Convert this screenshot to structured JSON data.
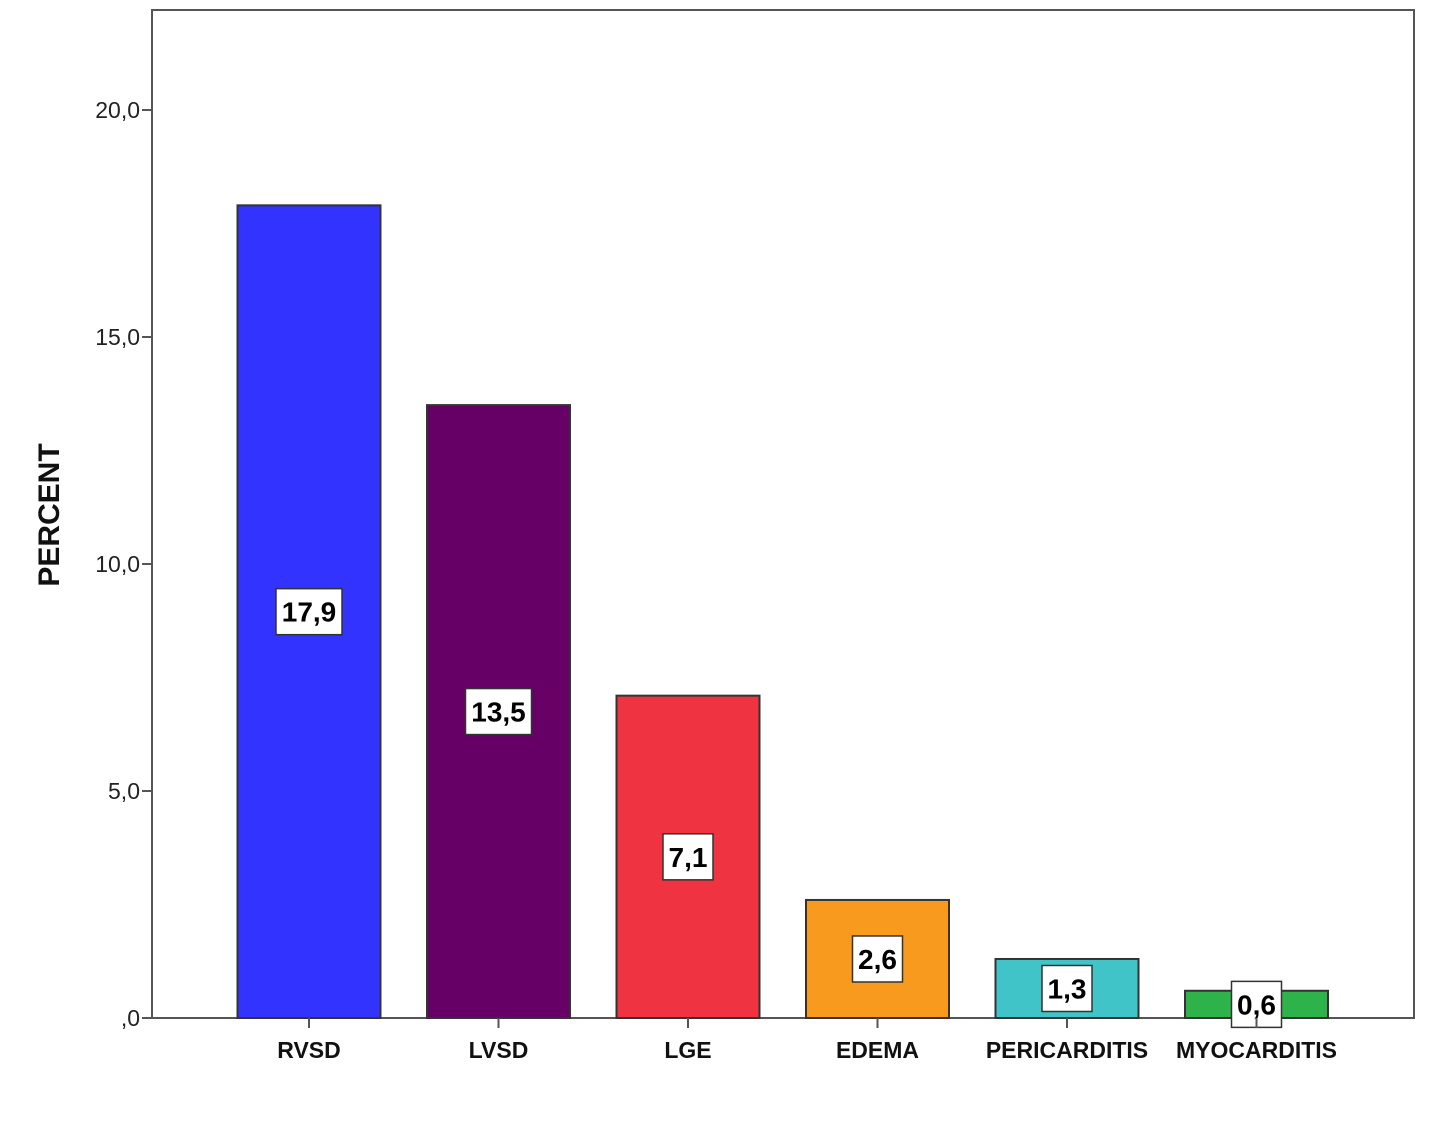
{
  "chart_data": {
    "type": "bar",
    "categories": [
      "RVSD",
      "LVSD",
      "LGE",
      "EDEMA",
      "PERICARDITIS",
      "MYOCARDITIS"
    ],
    "values": [
      17.9,
      13.5,
      7.1,
      2.6,
      1.3,
      0.6
    ],
    "value_labels": [
      "17,9",
      "13,5",
      "7,1",
      "2,6",
      "1,3",
      "0,6"
    ],
    "colors": [
      "#3333ff",
      "#660066",
      "#ef3340",
      "#f79a1e",
      "#40c4c8",
      "#2eb34a"
    ],
    "ylabel": "PERCENT",
    "xlabel": "",
    "ylim": [
      0,
      20
    ],
    "yticks": [
      0,
      5,
      10,
      15,
      20
    ],
    "ytick_labels": [
      ",0",
      "5,0",
      "10,0",
      "15,0",
      "20,0"
    ],
    "grid": false,
    "legend": "none"
  }
}
